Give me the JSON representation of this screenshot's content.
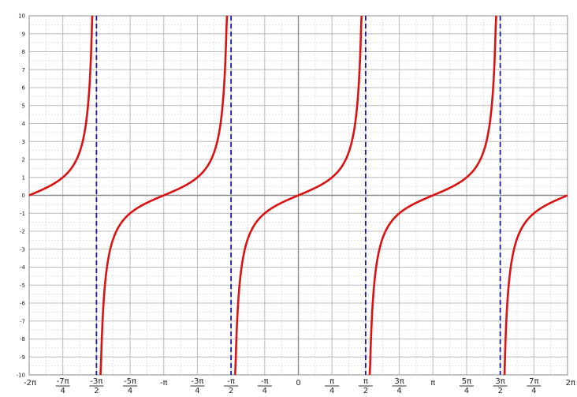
{
  "chart_data": {
    "type": "line",
    "title": "",
    "xlabel": "",
    "ylabel": "",
    "function": "tan(x)",
    "xlim_pi": [
      -2,
      2
    ],
    "ylim": [
      -10,
      10
    ],
    "grid": true,
    "minor_grid": true,
    "line_color": "#dd1111",
    "asymptote_color": "#1a1aaa",
    "asymptotes_pi": [
      -1.5,
      -0.5,
      0.5,
      1.5
    ],
    "y_ticks": [
      "10",
      "9",
      "8",
      "7",
      "6",
      "5",
      "4",
      "3",
      "2",
      "1",
      "0",
      "-1",
      "-2",
      "-3",
      "-4",
      "-5",
      "-6",
      "-7",
      "-8",
      "-9",
      "-10"
    ],
    "x_ticks": [
      {
        "x_pi": -2,
        "num": "-2π",
        "den": ""
      },
      {
        "x_pi": -1.75,
        "num": "-7π",
        "den": "4"
      },
      {
        "x_pi": -1.5,
        "num": "-3π",
        "den": "2"
      },
      {
        "x_pi": -1.25,
        "num": "-5π",
        "den": "4"
      },
      {
        "x_pi": -1,
        "num": "-π",
        "den": ""
      },
      {
        "x_pi": -0.75,
        "num": "-3π",
        "den": "4"
      },
      {
        "x_pi": -0.5,
        "num": "-π",
        "den": "2"
      },
      {
        "x_pi": -0.25,
        "num": "-π",
        "den": "4"
      },
      {
        "x_pi": 0,
        "num": "0",
        "den": ""
      },
      {
        "x_pi": 0.25,
        "num": "π",
        "den": "4"
      },
      {
        "x_pi": 0.5,
        "num": "π",
        "den": "2"
      },
      {
        "x_pi": 0.75,
        "num": "3π",
        "den": "4"
      },
      {
        "x_pi": 1,
        "num": "π",
        "den": ""
      },
      {
        "x_pi": 1.25,
        "num": "5π",
        "den": "4"
      },
      {
        "x_pi": 1.5,
        "num": "3π",
        "den": "2"
      },
      {
        "x_pi": 1.75,
        "num": "7π",
        "den": "4"
      },
      {
        "x_pi": 2,
        "num": "2π",
        "den": ""
      }
    ],
    "series": [
      {
        "branches": [
          {
            "x_pi": [
              -2,
              -1.9,
              -1.8,
              -1.75,
              -1.7,
              -1.6,
              -1.55,
              -1.53
            ],
            "y": [
              0,
              0.32,
              0.73,
              1.0,
              1.38,
              3.08,
              6.31,
              10
            ]
          },
          {
            "x_pi": [
              -1.47,
              -1.45,
              -1.4,
              -1.3,
              -1.25,
              -1.2,
              -1.1,
              -1,
              -0.9,
              -0.8,
              -0.75,
              -0.7,
              -0.6,
              -0.55,
              -0.53
            ],
            "y": [
              -10,
              -6.31,
              -3.08,
              -1.38,
              -1.0,
              -0.73,
              -0.32,
              0,
              0.32,
              0.73,
              1.0,
              1.38,
              3.08,
              6.31,
              10
            ]
          },
          {
            "x_pi": [
              -0.47,
              -0.45,
              -0.4,
              -0.3,
              -0.25,
              -0.2,
              -0.1,
              0,
              0.1,
              0.2,
              0.25,
              0.3,
              0.4,
              0.45,
              0.47
            ],
            "y": [
              -10,
              -6.31,
              -3.08,
              -1.38,
              -1.0,
              -0.73,
              -0.32,
              0,
              0.32,
              0.73,
              1.0,
              1.38,
              3.08,
              6.31,
              10
            ]
          },
          {
            "x_pi": [
              0.53,
              0.55,
              0.6,
              0.7,
              0.75,
              0.8,
              0.9,
              1,
              1.1,
              1.2,
              1.25,
              1.3,
              1.4,
              1.45,
              1.47
            ],
            "y": [
              -10,
              -6.31,
              -3.08,
              -1.38,
              -1.0,
              -0.73,
              -0.32,
              0,
              0.32,
              0.73,
              1.0,
              1.38,
              3.08,
              6.31,
              10
            ]
          },
          {
            "x_pi": [
              1.53,
              1.55,
              1.6,
              1.7,
              1.75,
              1.8,
              1.9,
              2
            ],
            "y": [
              -10,
              -6.31,
              -3.08,
              -1.38,
              -1.0,
              -0.73,
              -0.32,
              0
            ]
          }
        ]
      }
    ]
  }
}
